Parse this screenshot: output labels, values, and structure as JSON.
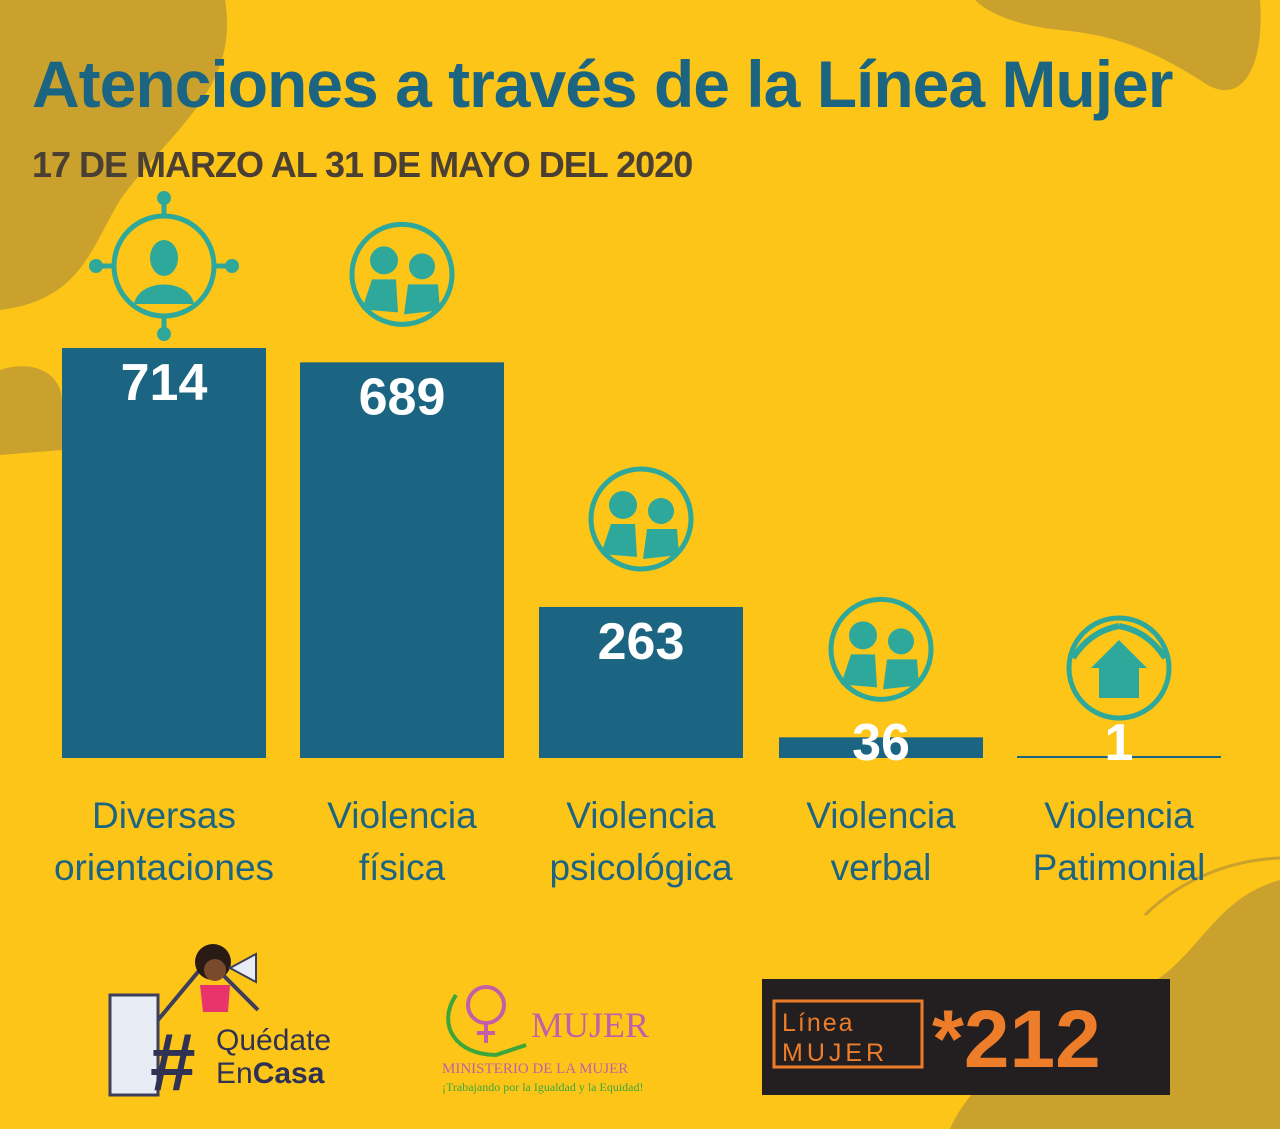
{
  "title": "Atenciones a través de la Línea Mujer",
  "subtitle": "17 DE MARZO AL 31 DE MAYO DEL 2020",
  "colors": {
    "background": "#fdc518",
    "bar": "#1b6482",
    "icon": "#2fa89c",
    "blob": "#c9a12c",
    "value_label": "#ffffff"
  },
  "chart_data": {
    "type": "bar",
    "title": "Atenciones a través de la Línea Mujer",
    "subtitle": "17 DE MARZO AL 31 DE MAYO DEL 2020",
    "categories": [
      "Diversas orientaciones",
      "Violencia física",
      "Violencia psicológica",
      "Violencia verbal",
      "Violencia Patimonial"
    ],
    "category_lines": [
      [
        "Diversas",
        "orientaciones"
      ],
      [
        "Violencia",
        "física"
      ],
      [
        "Violencia",
        "psicológica"
      ],
      [
        "Violencia",
        "verbal"
      ],
      [
        "Violencia",
        "Patimonial"
      ]
    ],
    "values": [
      714,
      689,
      263,
      36,
      1
    ],
    "icons": [
      "person-compass-icon",
      "physical-violence-icon",
      "psychological-violence-icon",
      "verbal-violence-icon",
      "house-protection-icon"
    ],
    "xlabel": "",
    "ylabel": "",
    "grid": false,
    "data_labels": true
  },
  "logos": {
    "quedate": {
      "line1": "Quédate",
      "line2a": "En",
      "line2b": "Casa",
      "hash": "#"
    },
    "ministerio": {
      "brand": "MUJER",
      "name": "MINISTERIO DE LA MUJER",
      "tagline": "¡Trabajando por la Igualdad y la Equidad!"
    },
    "linea": {
      "line1": "Línea",
      "line2": "MUJER",
      "number": "*212"
    }
  }
}
